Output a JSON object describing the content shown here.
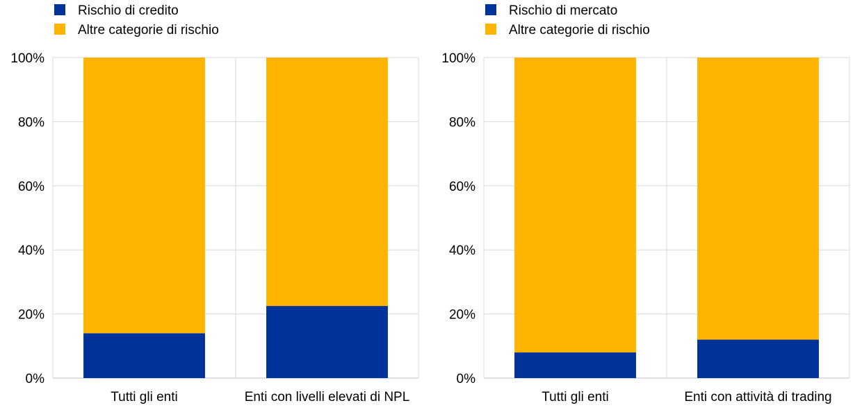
{
  "colors": {
    "primary": "#003399",
    "secondary": "#FFB400",
    "grid": "#d9d9d9",
    "axis": "#bfbfbf"
  },
  "chart_data": [
    {
      "type": "bar",
      "stacked": true,
      "categories": [
        "Tutti gli enti",
        "Enti con livelli elevati di NPL"
      ],
      "series": [
        {
          "name": "Rischio di credito",
          "color": "#003399",
          "values": [
            14,
            22.5
          ]
        },
        {
          "name": "Altre categorie di rischio",
          "color": "#FFB400",
          "values": [
            86,
            77.5
          ]
        }
      ],
      "ylim": [
        0,
        100
      ],
      "yticks": [
        "0%",
        "20%",
        "40%",
        "60%",
        "80%",
        "100%"
      ],
      "grid": true,
      "legend": "top-left"
    },
    {
      "type": "bar",
      "stacked": true,
      "categories": [
        "Tutti gli enti",
        "Enti con attività di trading"
      ],
      "series": [
        {
          "name": "Rischio di mercato",
          "color": "#003399",
          "values": [
            8,
            12
          ]
        },
        {
          "name": "Altre categorie di rischio",
          "color": "#FFB400",
          "values": [
            92,
            88
          ]
        }
      ],
      "ylim": [
        0,
        100
      ],
      "yticks": [
        "0%",
        "20%",
        "40%",
        "60%",
        "80%",
        "100%"
      ],
      "grid": true,
      "legend": "top-left"
    }
  ]
}
